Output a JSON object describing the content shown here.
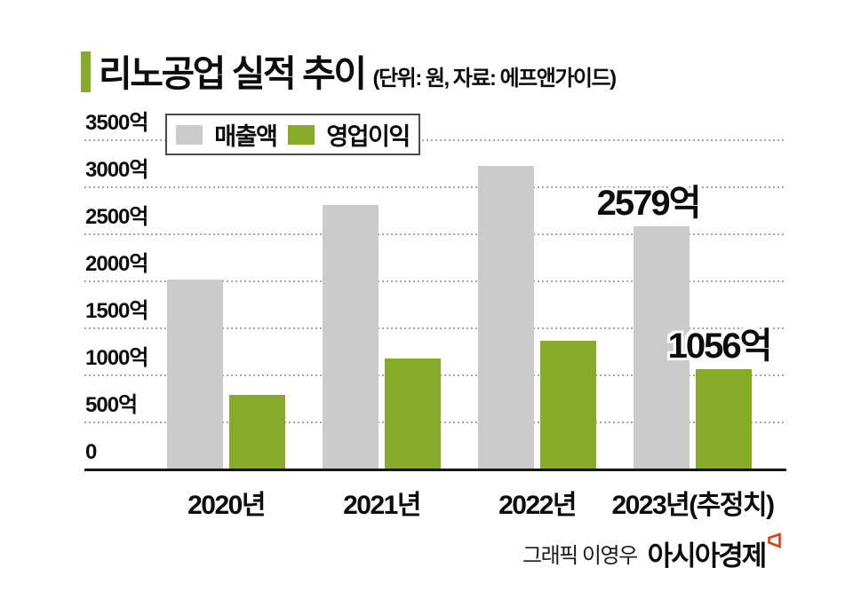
{
  "header": {
    "title": "리노공업 실적 추이",
    "subtitle": "(단위: 원, 자료: 에프앤가이드)"
  },
  "colors": {
    "accent_green": "#87ab29",
    "revenue_gray": "#cbcbcb",
    "gridline_gray": "#a7a7a7",
    "axis_black": "#161616",
    "brand_red": "#e8380d"
  },
  "chart_data": {
    "type": "bar",
    "title": "리노공업 실적 추이",
    "unit_source_note": "(단위: 원, 자료: 에프앤가이드)",
    "unit": "억 원",
    "categories": [
      "2020년",
      "2021년",
      "2022년",
      "2023년(추정치)"
    ],
    "series": [
      {
        "name": "매출액",
        "color": "#cbcbcb",
        "values": [
          2010,
          2800,
          3220,
          2579
        ]
      },
      {
        "name": "영업이익",
        "color": "#87ab29",
        "values": [
          780,
          1170,
          1360,
          1056
        ]
      }
    ],
    "ylim": [
      0,
      3500
    ],
    "ytick_step": 500,
    "yticks": [
      {
        "value": 3500,
        "label": "3500억"
      },
      {
        "value": 3000,
        "label": "3000억"
      },
      {
        "value": 2500,
        "label": "2500억"
      },
      {
        "value": 2000,
        "label": "2000억"
      },
      {
        "value": 1500,
        "label": "1500억"
      },
      {
        "value": 1000,
        "label": "1000억"
      },
      {
        "value": 500,
        "label": "500억"
      },
      {
        "value": 0,
        "label": "0"
      }
    ],
    "grid": "horizontal-dotted",
    "legend_position": "top-left-inside",
    "annotations": [
      {
        "series": 0,
        "category": 3,
        "text": "2579억"
      },
      {
        "series": 1,
        "category": 3,
        "text": "1056억"
      }
    ]
  },
  "footer": {
    "credit": "그래픽 이영우",
    "brand": "아시아경제",
    "brand_mark_icon": "red-quad-logo"
  }
}
